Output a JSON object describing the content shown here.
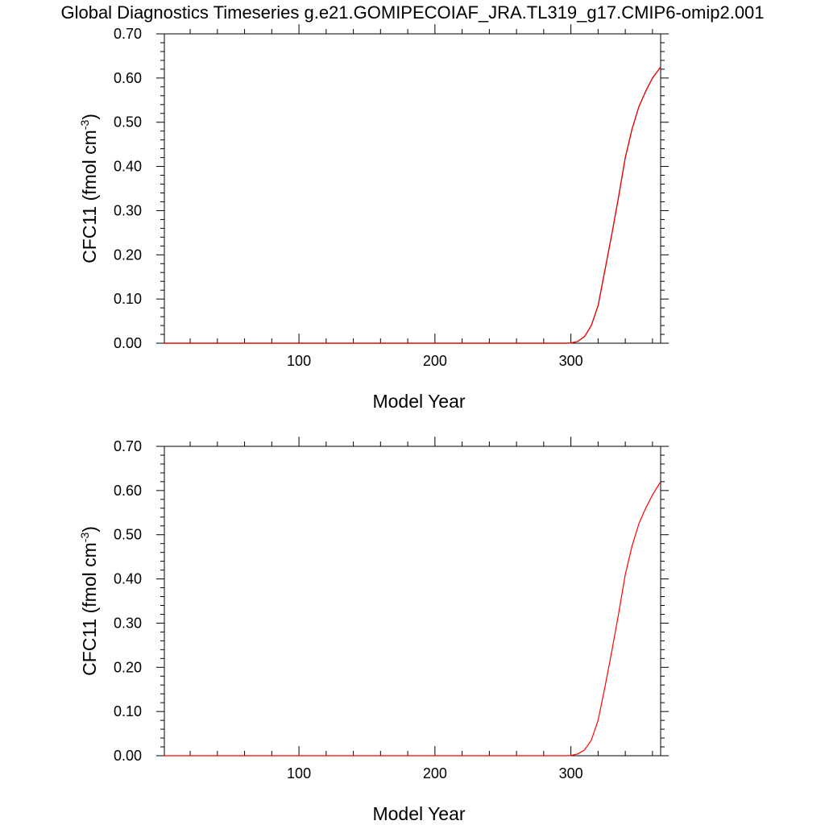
{
  "title": "Global Diagnostics Timeseries g.e21.GOMIPECOIAF_JRA.TL319_g17.CMIP6-omip2.001",
  "chart_data": [
    {
      "type": "line",
      "xlabel": "Model Year",
      "ylabel": {
        "main": "CFC11 (fmol cm",
        "sup": "-3",
        "close": ")"
      },
      "xlim": [
        1,
        366
      ],
      "ylim": [
        0,
        0.7
      ],
      "x_ticks": [
        100,
        200,
        300
      ],
      "y_ticks": [
        0.0,
        0.1,
        0.2,
        0.3,
        0.4,
        0.5,
        0.6,
        0.7
      ],
      "y_tick_labels": [
        "0.00",
        "0.10",
        "0.20",
        "0.30",
        "0.40",
        "0.50",
        "0.60",
        "0.70"
      ],
      "grid": false,
      "series": [
        {
          "color": "#000000",
          "x": [
            1,
            100,
            200,
            296,
            300,
            305,
            310,
            315,
            320,
            325,
            330,
            335,
            340,
            345,
            350,
            355,
            360,
            366
          ],
          "y": [
            0,
            0,
            0,
            0,
            0.0005,
            0.004,
            0.015,
            0.04,
            0.085,
            0.165,
            0.245,
            0.33,
            0.42,
            0.485,
            0.535,
            0.57,
            0.6,
            0.625
          ]
        },
        {
          "color": "#ff0000",
          "x": [
            1,
            100,
            200,
            296,
            300,
            305,
            310,
            315,
            320,
            325,
            330,
            335,
            340,
            345,
            350,
            355,
            360,
            366
          ],
          "y": [
            0,
            0,
            0,
            0,
            0.0005,
            0.004,
            0.015,
            0.04,
            0.085,
            0.165,
            0.245,
            0.33,
            0.42,
            0.485,
            0.535,
            0.57,
            0.6,
            0.625
          ]
        }
      ]
    },
    {
      "type": "line",
      "xlabel": "Model Year",
      "ylabel": {
        "main": "CFC11 (fmol cm",
        "sup": "-3",
        "close": ")"
      },
      "xlim": [
        1,
        366
      ],
      "ylim": [
        0,
        0.7
      ],
      "x_ticks": [
        100,
        200,
        300
      ],
      "y_ticks": [
        0.0,
        0.1,
        0.2,
        0.3,
        0.4,
        0.5,
        0.6,
        0.7
      ],
      "y_tick_labels": [
        "0.00",
        "0.10",
        "0.20",
        "0.30",
        "0.40",
        "0.50",
        "0.60",
        "0.70"
      ],
      "grid": false,
      "series": [
        {
          "color": "#ff0000",
          "x": [
            1,
            100,
            200,
            296,
            300,
            305,
            310,
            315,
            320,
            325,
            330,
            335,
            340,
            345,
            350,
            355,
            360,
            366
          ],
          "y": [
            0,
            0,
            0,
            0,
            0.0005,
            0.004,
            0.013,
            0.035,
            0.08,
            0.155,
            0.235,
            0.32,
            0.41,
            0.475,
            0.525,
            0.56,
            0.59,
            0.62
          ]
        }
      ]
    }
  ]
}
